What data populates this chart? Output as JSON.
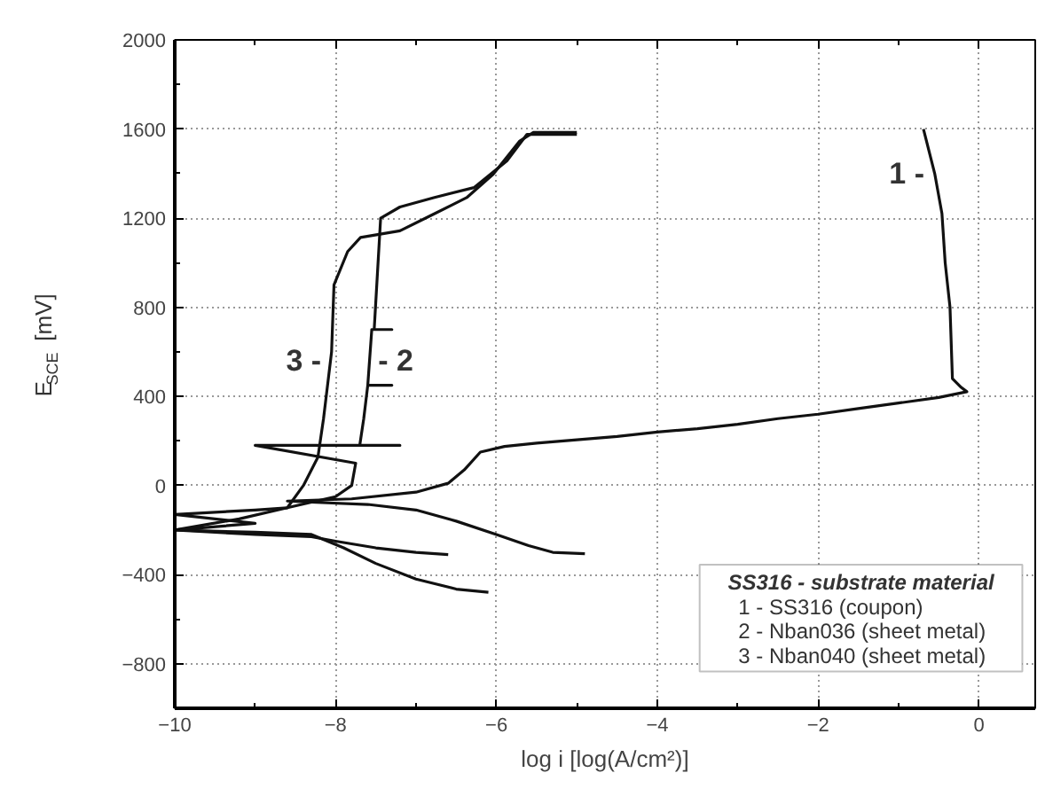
{
  "chart_data": {
    "type": "line",
    "xlabel": "log i [log(A/cm²)]",
    "ylabel": "E$_{SCE}$ [mV]",
    "xlim": [
      -10,
      0.7
    ],
    "ylim": [
      -1000,
      2000
    ],
    "xticks": [
      -10,
      -8,
      -6,
      -4,
      -2,
      0
    ],
    "yticks": [
      -800,
      -400,
      0,
      400,
      800,
      1200,
      1600,
      2000
    ],
    "grid": true,
    "marker": "none",
    "line_style": "solid",
    "series": [
      {
        "name": "1 -",
        "color": "#111111",
        "x": [
          -4.9,
          -5.3,
          -5.6,
          -6.0,
          -6.5,
          -7.0,
          -7.6,
          -8.3,
          -8.6,
          -7.8,
          -7.0,
          -6.6,
          -6.4,
          -6.2,
          -5.9,
          -5.5,
          -5.0,
          -4.5,
          -4.0,
          -3.5,
          -3.0,
          -2.5,
          -2.0,
          -1.5,
          -1.0,
          -0.5,
          -0.15,
          -0.22,
          -0.33,
          -0.36,
          -0.42,
          -0.46,
          -0.55,
          -0.69
        ],
        "values": [
          -306,
          -300,
          -270,
          -220,
          -160,
          -110,
          -85,
          -75,
          -70,
          -60,
          -30,
          10,
          70,
          150,
          175,
          190,
          205,
          220,
          240,
          255,
          275,
          300,
          320,
          345,
          370,
          395,
          421,
          440,
          480,
          800,
          1000,
          1220,
          1400,
          1600
        ]
      },
      {
        "name": "- 2",
        "color": "#111111",
        "x": [
          -6.1,
          -6.5,
          -7.0,
          -7.5,
          -7.9,
          -8.3,
          -9.0,
          -10.0,
          -9.2,
          -8.6,
          -8.0,
          -7.8,
          -7.75,
          -9.0,
          -7.2,
          -7.7,
          -7.65,
          -7.6,
          -7.3,
          -7.6,
          -7.55,
          -7.3,
          -7.52,
          -7.44,
          -7.2,
          -6.78,
          -6.28,
          -5.87,
          -5.62,
          -5.3,
          -5.0
        ],
        "values": [
          -479,
          -465,
          -420,
          -350,
          -280,
          -220,
          -210,
          -200,
          -150,
          -100,
          -50,
          0,
          100,
          180,
          180,
          180,
          300,
          450,
          450,
          450,
          700,
          700,
          700,
          1200,
          1250,
          1292,
          1337,
          1457,
          1576,
          1576,
          1576
        ]
      },
      {
        "name": "3 -",
        "color": "#111111",
        "x": [
          -6.6,
          -7.0,
          -7.5,
          -8.0,
          -8.3,
          -9.0,
          -10.0,
          -9.0,
          -10.0,
          -9.0,
          -8.6,
          -8.4,
          -8.22,
          -8.15,
          -8.05,
          -8.02,
          -7.85,
          -7.69,
          -7.2,
          -6.78,
          -6.37,
          -6.04,
          -5.71,
          -5.54,
          -5.0
        ],
        "values": [
          -310,
          -300,
          -280,
          -250,
          -230,
          -220,
          -200,
          -170,
          -130,
          -110,
          -100,
          0,
          127,
          300,
          600,
          900,
          1050,
          1113,
          1143,
          1218,
          1292,
          1397,
          1546,
          1585,
          1585
        ]
      }
    ],
    "annotations": [
      "SS316 - substrate material",
      "1 -  SS316 (coupon)",
      "2 -  Nban036 (sheet metal)",
      "3 -  Nban040 (sheet metal)"
    ]
  }
}
